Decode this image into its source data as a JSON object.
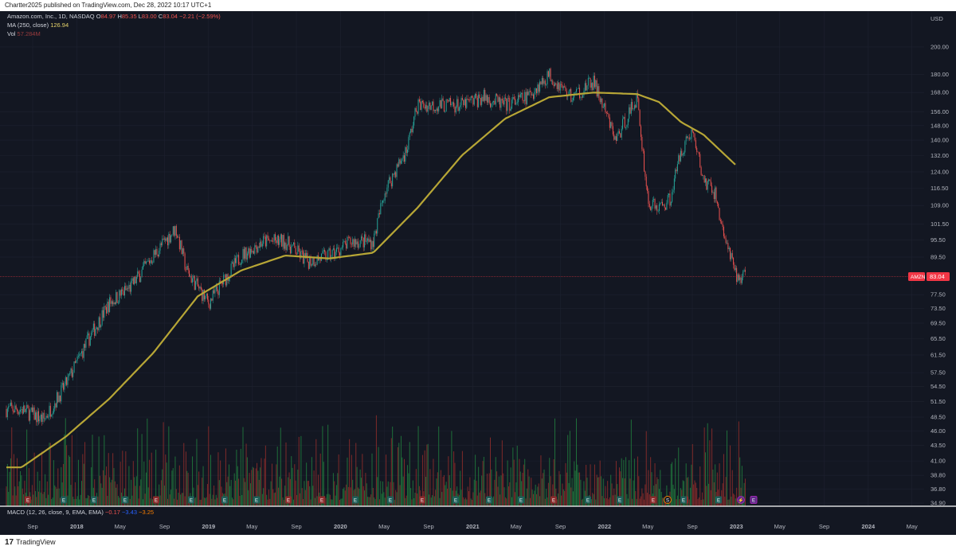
{
  "header": {
    "publisher": "Chartter2025 published on TradingView.com, Dec 28, 2022 10:17 UTC+1"
  },
  "legend": {
    "symbol_line": "Amazon.com, Inc., 1D, NASDAQ",
    "open_label": "O",
    "open": "84.97",
    "high_label": "H",
    "high": "85.35",
    "low_label": "L",
    "low": "83.00",
    "close_label": "C",
    "close": "83.04",
    "change": "−2.21 (−2.59%)",
    "ma_label": "MA (250, close)",
    "ma_value": "126.94",
    "vol_label": "Vol",
    "vol_value": "57.284M",
    "macd_label": "MACD (12, 26, close, 9, EMA, EMA)",
    "macd_v1": "−0.17",
    "macd_v2": "−3.43",
    "macd_v3": "−3.25"
  },
  "footer": {
    "brand": "TradingView",
    "logo_glyph": "17"
  },
  "colors": {
    "background": "#131722",
    "up": "#26a69a",
    "down": "#ef5350",
    "ma": "#b7a636",
    "vol_up": "#1f6e3a",
    "vol_down": "#7e2a2a",
    "price_tag": "#f23645"
  },
  "chart_data": {
    "type": "candlestick",
    "currency": "USD",
    "y_scale": "log",
    "price_ticks": [
      "200.00",
      "180.00",
      "168.00",
      "156.00",
      "148.00",
      "140.00",
      "132.00",
      "124.00",
      "116.50",
      "109.00",
      "101.50",
      "95.50",
      "89.50",
      "77.50",
      "73.50",
      "69.50",
      "65.50",
      "61.50",
      "57.50",
      "54.50",
      "51.50",
      "48.50",
      "46.00",
      "43.50",
      "41.00",
      "38.80",
      "36.80",
      "34.90"
    ],
    "x_ticks": [
      "Sep",
      "2018",
      "May",
      "Sep",
      "2019",
      "May",
      "Sep",
      "2020",
      "May",
      "Sep",
      "2021",
      "May",
      "Sep",
      "2022",
      "May",
      "Sep",
      "2023",
      "May",
      "Sep",
      "2024",
      "May"
    ],
    "last_price": {
      "symbol": "AMZN",
      "value": "83.04"
    },
    "close_series": {
      "x": [
        "2017-07",
        "2017-09",
        "2017-11",
        "2018-01",
        "2018-03",
        "2018-05",
        "2018-07",
        "2018-09",
        "2018-10",
        "2018-12",
        "2019-01",
        "2019-03",
        "2019-05",
        "2019-07",
        "2019-09",
        "2019-11",
        "2020-01",
        "2020-03",
        "2020-04",
        "2020-06",
        "2020-07",
        "2020-09",
        "2020-11",
        "2021-01",
        "2021-03",
        "2021-05",
        "2021-07",
        "2021-09",
        "2021-11",
        "2022-01",
        "2022-03",
        "2022-04",
        "2022-05",
        "2022-06",
        "2022-07",
        "2022-08",
        "2022-09",
        "2022-10",
        "2022-11",
        "2022-12"
      ],
      "y": [
        50,
        48,
        55,
        65,
        75,
        80,
        90,
        100,
        85,
        75,
        80,
        90,
        95,
        95,
        88,
        90,
        95,
        95,
        115,
        135,
        160,
        160,
        160,
        165,
        160,
        165,
        180,
        165,
        175,
        140,
        165,
        110,
        108,
        112,
        135,
        145,
        120,
        115,
        95,
        83
      ]
    },
    "ma_series": {
      "name": "MA (250, close)",
      "x": [
        "2017-07",
        "2017-11",
        "2018-03",
        "2018-07",
        "2018-11",
        "2019-03",
        "2019-07",
        "2019-11",
        "2020-03",
        "2020-07",
        "2020-11",
        "2021-03",
        "2021-07",
        "2021-11",
        "2022-03",
        "2022-05",
        "2022-07",
        "2022-09",
        "2022-12"
      ],
      "y": [
        40,
        45,
        52,
        62,
        77,
        85,
        90,
        89,
        91,
        108,
        132,
        152,
        165,
        168,
        167,
        162,
        150,
        143,
        127
      ]
    },
    "volume": "relative bars, one per session",
    "events": [
      {
        "label": "E"
      },
      {
        "label": "E"
      },
      {
        "label": "E"
      },
      {
        "label": "E"
      },
      {
        "label": "E"
      },
      {
        "label": "E"
      },
      {
        "label": "E"
      },
      {
        "label": "E"
      },
      {
        "label": "E"
      },
      {
        "label": "E"
      },
      {
        "label": "E"
      },
      {
        "label": "E"
      },
      {
        "label": "E"
      },
      {
        "label": "E"
      },
      {
        "label": "E"
      },
      {
        "label": "E"
      },
      {
        "label": "E"
      },
      {
        "label": "E"
      },
      {
        "label": "E"
      },
      {
        "label": "E"
      },
      {
        "label": "E"
      },
      {
        "label": "S"
      },
      {
        "label": "E"
      },
      {
        "label": "E"
      },
      {
        "label": "⚡"
      },
      {
        "label": "E"
      }
    ]
  }
}
